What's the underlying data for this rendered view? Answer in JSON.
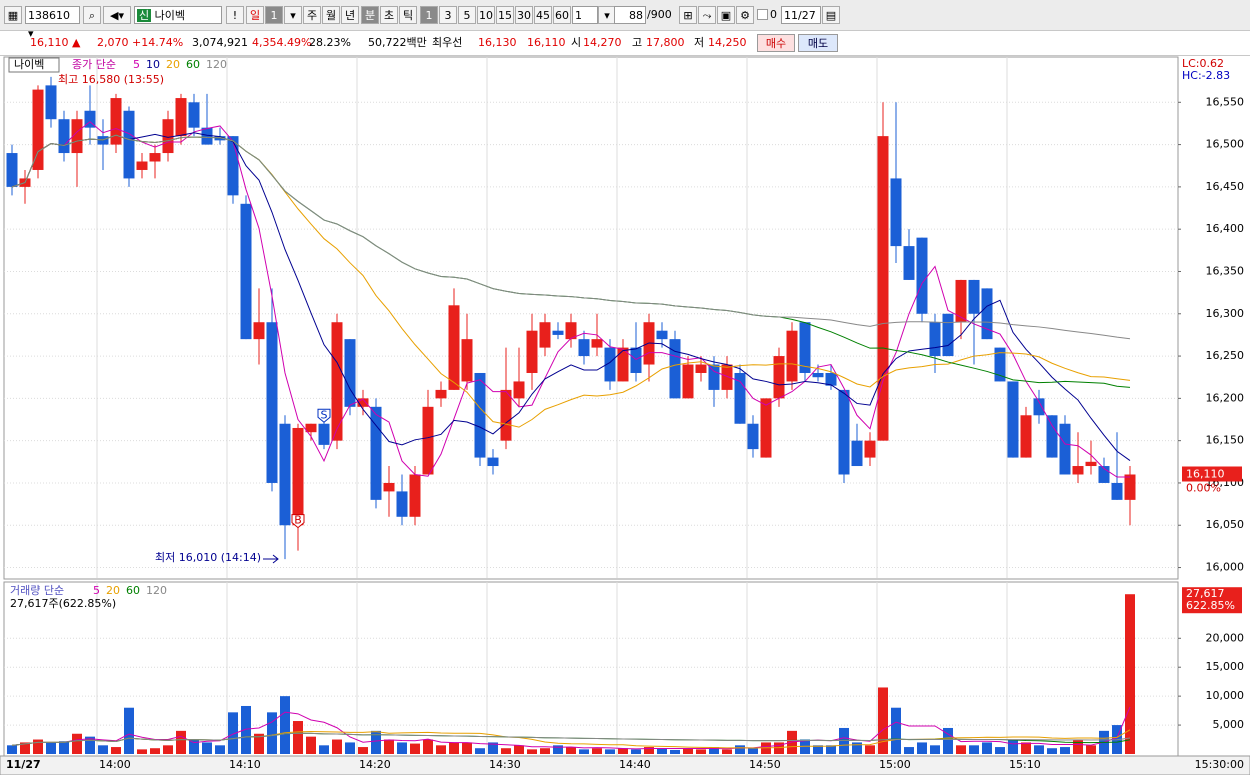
{
  "toolbar": {
    "code": "138610",
    "badge": "신",
    "name": "나이벡",
    "alert": "!",
    "period_day": "일",
    "day_count": "1",
    "period_week": "주",
    "period_month": "월",
    "period_year": "년",
    "period_minute": "분",
    "period_second": "초",
    "period_tick": "틱",
    "intervals": [
      "1",
      "3",
      "5",
      "10",
      "15",
      "30",
      "45",
      "60"
    ],
    "custom_interval": "1",
    "count": "88",
    "count_max": "/900",
    "check_value": "0",
    "date": "11/27"
  },
  "info_bar": {
    "price": "16,110 ▲",
    "change": "2,070",
    "change_pct": "+14.74%",
    "volume": "3,074,921",
    "volume_ratio": "4,354.49%",
    "turnover": "28.23%",
    "amount": "50,722백만",
    "best_label": "최우선",
    "best_ask": "16,130",
    "best_bid": "16,110",
    "open_label": "시",
    "open": "14,270",
    "high_label": "고",
    "high": "17,800",
    "low_label": "저",
    "low": "14,250",
    "buy": "매수",
    "sell": "매도"
  },
  "chart_data": [
    {
      "type": "candlestick",
      "legend_name": "나이벡",
      "legend_label": "종가 단순",
      "ma_periods": [
        5,
        10,
        20,
        60,
        120
      ],
      "ma_colors": [
        "#d000b0",
        "#000090",
        "#e8a000",
        "#008000",
        "#888888"
      ],
      "up_color": "#e8201c",
      "down_color": "#1b5fd6",
      "high_annotation": "최고 16,580 (13:55)",
      "low_annotation": "최저 16,010 (14:14)",
      "buy_marker": "B",
      "sell_marker": "S",
      "lc_label": "LC:0.62",
      "hc_label": "HC:-2.83",
      "last_label": "16,110",
      "last_change": "0.00%",
      "cursor_time": "15:30:00",
      "categories": [
        "11/27",
        null,
        null,
        null,
        null,
        null,
        null,
        "14:00",
        null,
        null,
        null,
        null,
        null,
        null,
        null,
        null,
        null,
        "14:10",
        null,
        null,
        null,
        null,
        null,
        null,
        null,
        null,
        null,
        "14:20",
        null,
        null,
        null,
        null,
        null,
        null,
        null,
        null,
        null,
        "14:30",
        null,
        null,
        null,
        null,
        null,
        null,
        null,
        null,
        null,
        "14:40",
        null,
        null,
        null,
        null,
        null,
        null,
        null,
        null,
        null,
        "14:50",
        null,
        null,
        null,
        null,
        null,
        null,
        null,
        null,
        null,
        "15:00",
        null,
        null,
        null,
        null,
        null,
        null,
        null,
        null,
        null,
        "15:10",
        null,
        null,
        null,
        null,
        null,
        null,
        null,
        null,
        null
      ],
      "open": [
        16490,
        16450,
        16470,
        16570,
        16530,
        16490,
        16540,
        16510,
        16500,
        16540,
        16470,
        16480,
        16490,
        16510,
        16550,
        16520,
        16510,
        16510,
        16430,
        16270,
        16290,
        16170,
        16050,
        16160,
        16170,
        16150,
        16270,
        16190,
        16190,
        16090,
        16090,
        16060,
        16110,
        16200,
        16210,
        16220,
        16230,
        16130,
        16150,
        16200,
        16230,
        16260,
        16280,
        16270,
        16270,
        16260,
        16260,
        16220,
        16260,
        16240,
        16280,
        16270,
        16200,
        16230,
        16240,
        16210,
        16230,
        16170,
        16130,
        16200,
        16220,
        16290,
        16230,
        16230,
        16210,
        16150,
        16130,
        16150,
        16460,
        16380,
        16390,
        16290,
        16300,
        16290,
        16340,
        16330,
        16260,
        16220,
        16130,
        16200,
        16180,
        16170,
        16110,
        16120,
        16120,
        16100,
        16080
      ],
      "high": [
        16500,
        16470,
        16570,
        16580,
        16540,
        16540,
        16570,
        16530,
        16560,
        16545,
        16490,
        16500,
        16540,
        16560,
        16560,
        16560,
        16520,
        16510,
        16440,
        16330,
        16330,
        16180,
        16170,
        16170,
        16180,
        16300,
        16270,
        16210,
        16200,
        16120,
        16110,
        16120,
        16210,
        16220,
        16330,
        16300,
        16230,
        16140,
        16260,
        16260,
        16300,
        16300,
        16290,
        16300,
        16280,
        16300,
        16270,
        16270,
        16290,
        16300,
        16290,
        16280,
        16250,
        16250,
        16250,
        16250,
        16240,
        16180,
        16200,
        16260,
        16290,
        16290,
        16240,
        16240,
        16210,
        16170,
        16160,
        16550,
        16550,
        16400,
        16390,
        16300,
        16300,
        16340,
        16340,
        16330,
        16260,
        16220,
        16190,
        16210,
        16180,
        16180,
        16160,
        16150,
        16130,
        16160,
        16120
      ],
      "low": [
        16440,
        16430,
        16460,
        16520,
        16480,
        16450,
        16500,
        16470,
        16490,
        16450,
        16460,
        16460,
        16480,
        16500,
        16510,
        16500,
        16500,
        16430,
        16270,
        16240,
        16090,
        16010,
        16020,
        16150,
        16140,
        16140,
        16180,
        16180,
        16070,
        16060,
        16050,
        16050,
        16110,
        16190,
        16210,
        16210,
        16120,
        16110,
        16140,
        16190,
        16210,
        16250,
        16270,
        16260,
        16240,
        16250,
        16210,
        16220,
        16220,
        16220,
        16260,
        16200,
        16200,
        16220,
        16190,
        16200,
        16170,
        16130,
        16130,
        16190,
        16210,
        16220,
        16220,
        16210,
        16100,
        16120,
        16120,
        16150,
        16360,
        16340,
        16290,
        16230,
        16250,
        16270,
        16240,
        16270,
        16220,
        16130,
        16130,
        16170,
        16130,
        16110,
        16100,
        16110,
        16100,
        16080,
        16050
      ],
      "close": [
        16450,
        16460,
        16565,
        16530,
        16490,
        16530,
        16520,
        16500,
        16555,
        16460,
        16480,
        16490,
        16530,
        16555,
        16520,
        16500,
        16505,
        16440,
        16270,
        16290,
        16100,
        16050,
        16165,
        16170,
        16145,
        16290,
        16190,
        16200,
        16080,
        16100,
        16060,
        16110,
        16190,
        16210,
        16310,
        16270,
        16130,
        16120,
        16210,
        16220,
        16280,
        16290,
        16275,
        16290,
        16250,
        16270,
        16220,
        16260,
        16230,
        16290,
        16270,
        16200,
        16240,
        16240,
        16210,
        16240,
        16170,
        16140,
        16200,
        16250,
        16280,
        16230,
        16225,
        16215,
        16110,
        16120,
        16150,
        16510,
        16380,
        16340,
        16300,
        16250,
        16250,
        16340,
        16300,
        16270,
        16220,
        16130,
        16180,
        16180,
        16130,
        16110,
        16120,
        16125,
        16100,
        16080,
        16110
      ],
      "ylim": [
        15990,
        16600
      ],
      "yticks": [
        {
          "value": 16000,
          "label": "16,000"
        },
        {
          "value": 16050,
          "label": "16,050"
        },
        {
          "value": 16100,
          "label": "16,100"
        },
        {
          "value": 16150,
          "label": "16,150"
        },
        {
          "value": 16200,
          "label": "16,200"
        },
        {
          "value": 16250,
          "label": "16,250"
        },
        {
          "value": 16300,
          "label": "16,300"
        },
        {
          "value": 16350,
          "label": "16,350"
        },
        {
          "value": 16400,
          "label": "16,400"
        },
        {
          "value": 16450,
          "label": "16,450"
        },
        {
          "value": 16500,
          "label": "16,500"
        },
        {
          "value": 16550,
          "label": "16,550"
        }
      ],
      "grid": true
    },
    {
      "type": "volume",
      "legend_label": "거래량 단순",
      "ma_periods": [
        5,
        20,
        60,
        120
      ],
      "ma_colors": [
        "#d000b0",
        "#e8a000",
        "#008000",
        "#888888"
      ],
      "summary": "27,617주(622.85%)",
      "last_label": "27,617",
      "last_ratio": "622.85%",
      "values": [
        1500,
        2000,
        2500,
        2000,
        2200,
        3500,
        3000,
        1500,
        1200,
        8000,
        800,
        1000,
        1500,
        4000,
        2500,
        2000,
        1500,
        7200,
        8300,
        3500,
        7200,
        10000,
        5700,
        3000,
        1500,
        2500,
        2000,
        1200,
        4000,
        2500,
        2000,
        1800,
        2500,
        1500,
        2000,
        2000,
        1000,
        2000,
        1000,
        1500,
        800,
        1000,
        1500,
        1200,
        800,
        1000,
        800,
        1000,
        800,
        1200,
        1000,
        700,
        1000,
        800,
        1200,
        800,
        1500,
        1000,
        2000,
        2000,
        4000,
        2500,
        1500,
        1500,
        4500,
        2000,
        1500,
        11500,
        8000,
        1200,
        2000,
        1500,
        4500,
        1500,
        1500,
        2000,
        1200,
        2500,
        2000,
        1500,
        1000,
        1200,
        2500,
        1500,
        4000,
        5000,
        27617
      ],
      "ylim": [
        0,
        28000
      ],
      "yticks": [
        {
          "value": 5000,
          "label": "5,000"
        },
        {
          "value": 10000,
          "label": "10,000"
        },
        {
          "value": 15000,
          "label": "15,000"
        },
        {
          "value": 20000,
          "label": "20,000"
        }
      ],
      "grid": true
    }
  ]
}
